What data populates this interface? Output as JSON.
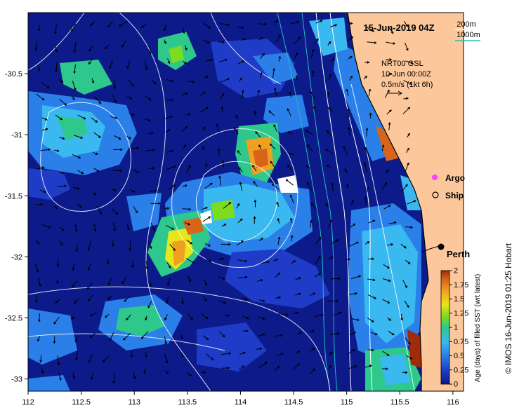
{
  "map": {
    "title": "15-Jun-2019 04Z",
    "x_ticks": [
      "112",
      "112.5",
      "113",
      "113.5",
      "114",
      "114.5",
      "115",
      "115.5",
      "116"
    ],
    "y_ticks": [
      "-30.5",
      "-31",
      "-31.5",
      "-32",
      "-32.5",
      "-33"
    ],
    "x_range": [
      112,
      116.1
    ],
    "y_range": [
      -33.1,
      -30.0
    ],
    "bathymetry_legend": {
      "shallow": "200m",
      "deep": "1000m",
      "shallow_color": "#ffffff",
      "deep_color": "#22bbbb"
    },
    "current_info": {
      "line1": "NRT00 GSL",
      "line2": "10-Jun 00:00Z",
      "scale": "0.5m/s (1kt 6h)"
    },
    "markers": {
      "argo": "Argo",
      "ship": "Ship",
      "city": "Perth"
    },
    "colorbar": {
      "label": "Age (days) of filled SST (wrt latest)",
      "ticks": [
        "0",
        "0.25",
        "0.5",
        "0.75",
        "1",
        "1.25",
        "1.5",
        "1.75",
        "2"
      ],
      "colors": [
        "#0c1a8a",
        "#1e3cc8",
        "#2a7fe8",
        "#3ab8f0",
        "#2ec88c",
        "#7ddc1e",
        "#e6e61a",
        "#f0a020",
        "#d8641a",
        "#a02a0a"
      ]
    },
    "credit": "© IMOS 16-Jun-2019 01:25 Hobart",
    "land_color": "#fcc79a",
    "ocean_color": "#0c1a8a"
  }
}
